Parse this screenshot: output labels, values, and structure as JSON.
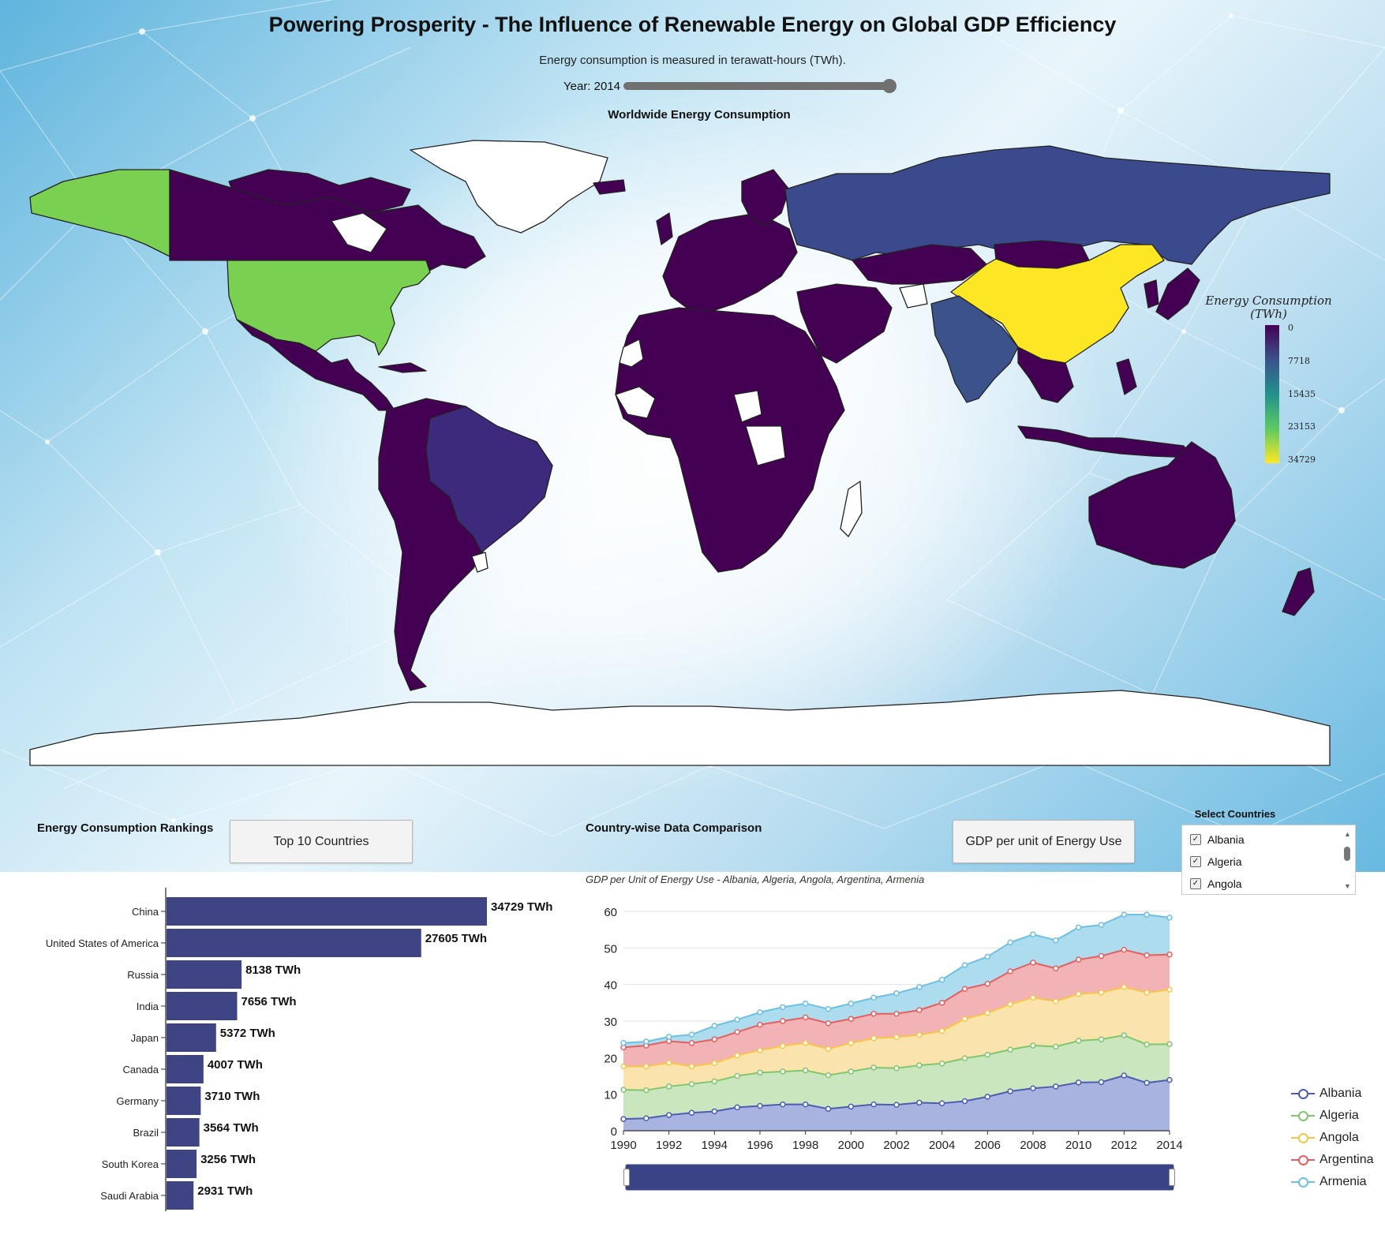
{
  "page": {
    "title": "Powering Prosperity - The Influence of Renewable Energy on Global GDP Efficiency",
    "subtitle": "Energy consumption is measured in terawatt-hours (TWh).",
    "year_label": "Year: 2014",
    "year_value": 2014,
    "year_range": [
      1990,
      2014
    ]
  },
  "map": {
    "title": "Worldwide Energy Consumption",
    "legend_title_line1": "Energy Consumption",
    "legend_title_line2": "(TWh)",
    "legend_ticks": [
      "0",
      "7718",
      "15435",
      "23153",
      "34729"
    ],
    "colors": {
      "high": "#fde725",
      "mid_high": "#7ad151",
      "mid": "#3b528b",
      "low": "#440154",
      "no_data": "#ffffff"
    }
  },
  "rankings": {
    "label": "Energy Consumption Rankings",
    "button_label": "Top 10 Countries",
    "bar_color": "#3f4484"
  },
  "comparison": {
    "label": "Country-wise Data Comparison",
    "button_label": "GDP per unit of Energy Use",
    "select_title": "Select Countries",
    "select_items": [
      {
        "label": "Albania",
        "checked": "✓"
      },
      {
        "label": "Algeria",
        "checked": "✓"
      },
      {
        "label": "Angola",
        "checked": "✓"
      }
    ],
    "chart_caption": "GDP per Unit of Energy Use - Albania, Algeria, Angola, Argentina, Armenia"
  },
  "chart_data": [
    {
      "type": "bar",
      "orientation": "horizontal",
      "categories": [
        "China",
        "United States of America",
        "Russia",
        "India",
        "Japan",
        "Canada",
        "Germany",
        "Brazil",
        "South Korea",
        "Saudi Arabia"
      ],
      "values": [
        34729,
        27605,
        8138,
        7656,
        5372,
        4007,
        3710,
        3564,
        3256,
        2931
      ],
      "value_labels": [
        "34729 TWh",
        "27605 TWh",
        "8138 TWh",
        "7656 TWh",
        "5372 TWh",
        "4007 TWh",
        "3710 TWh",
        "3564 TWh",
        "3256 TWh",
        "2931 TWh"
      ],
      "xlim": [
        0,
        34729
      ]
    },
    {
      "type": "area",
      "stacked": true,
      "x": [
        1990,
        1991,
        1992,
        1993,
        1994,
        1995,
        1996,
        1997,
        1998,
        1999,
        2000,
        2001,
        2002,
        2003,
        2004,
        2005,
        2006,
        2007,
        2008,
        2009,
        2010,
        2011,
        2012,
        2013,
        2014
      ],
      "x_ticks": [
        "1990",
        "1992",
        "1994",
        "1996",
        "1998",
        "2000",
        "2002",
        "2004",
        "2006",
        "2008",
        "2010",
        "2012",
        "2014"
      ],
      "y_ticks": [
        "0",
        "10",
        "20",
        "30",
        "40",
        "50",
        "60"
      ],
      "ylim": [
        0,
        60
      ],
      "grid": true,
      "legend": "right",
      "series": [
        {
          "name": "Albania",
          "color": "#4c5cb4",
          "fill": "#a9b3e0",
          "values": [
            3.2,
            3.4,
            4.3,
            4.9,
            5.3,
            6.4,
            6.8,
            7.2,
            7.2,
            6.0,
            6.6,
            7.2,
            7.1,
            7.7,
            7.5,
            8.1,
            9.3,
            10.8,
            11.6,
            12.1,
            13.2,
            13.3,
            15.1,
            13.1,
            13.9
          ]
        },
        {
          "name": "Algeria",
          "color": "#7fc66d",
          "fill": "#c9e6bf",
          "values": [
            11.2,
            11.1,
            12.1,
            12.8,
            13.5,
            15.0,
            15.9,
            16.2,
            16.5,
            15.2,
            16.2,
            17.3,
            17.1,
            17.9,
            18.4,
            19.8,
            20.8,
            22.2,
            23.3,
            23.0,
            24.6,
            25.0,
            26.1,
            23.6,
            23.7
          ]
        },
        {
          "name": "Angola",
          "color": "#f7c648",
          "fill": "#fbe3ad",
          "values": [
            17.6,
            17.6,
            18.6,
            17.6,
            18.5,
            20.6,
            22.0,
            23.2,
            24.0,
            22.4,
            24.0,
            25.3,
            25.6,
            26.2,
            27.3,
            30.6,
            32.2,
            34.6,
            36.4,
            35.4,
            37.4,
            37.8,
            39.3,
            37.8,
            38.6
          ]
        },
        {
          "name": "Argentina",
          "color": "#e85e5e",
          "fill": "#f1b3b6",
          "values": [
            22.8,
            23.3,
            24.5,
            24.0,
            25.0,
            27.0,
            29.0,
            30.0,
            31.0,
            29.4,
            30.6,
            32.0,
            32.0,
            33.0,
            35.0,
            38.8,
            40.2,
            43.6,
            46.0,
            44.4,
            46.8,
            47.8,
            49.5,
            48.0,
            48.2
          ]
        },
        {
          "name": "Armenia",
          "color": "#6cc0e2",
          "fill": "#acdcee",
          "values": [
            24.0,
            24.4,
            25.7,
            26.3,
            28.7,
            30.4,
            32.4,
            33.8,
            34.8,
            33.3,
            34.8,
            36.4,
            37.6,
            39.3,
            41.3,
            45.3,
            47.6,
            51.5,
            53.7,
            52.1,
            55.6,
            56.3,
            59.1,
            59.1,
            58.3
          ]
        }
      ]
    }
  ]
}
